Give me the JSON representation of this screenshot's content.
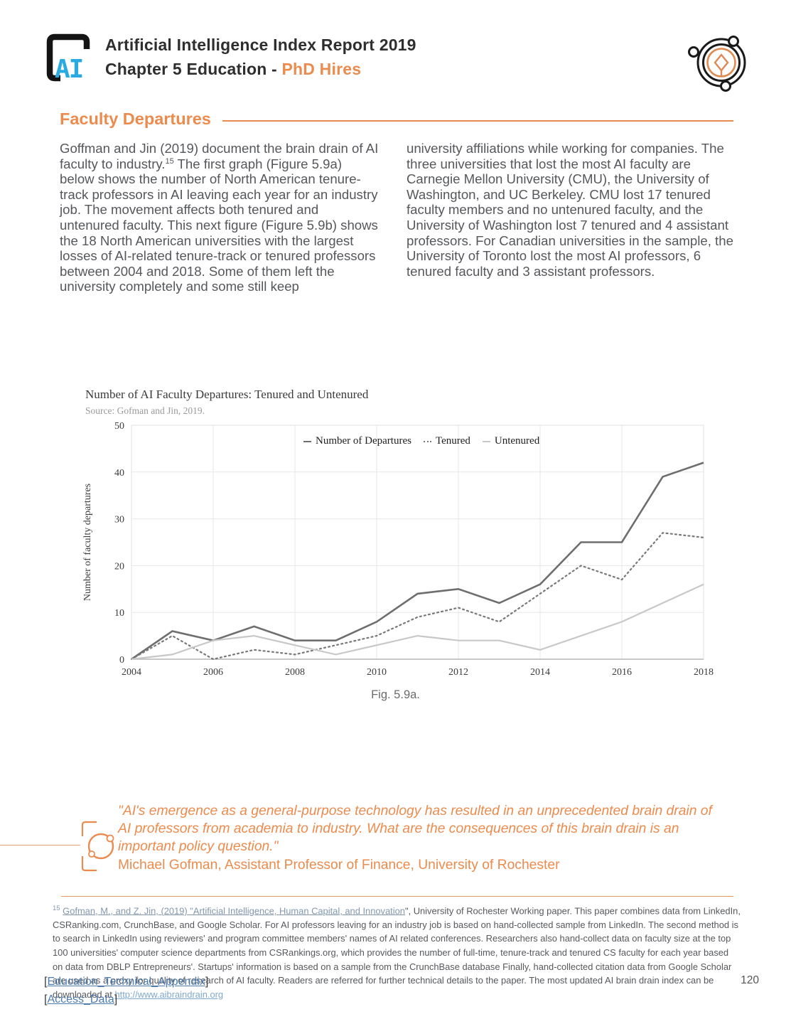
{
  "header": {
    "logo_text": "AI",
    "title": "Artificial Intelligence Index Report 2019",
    "chapter_prefix": "Chapter 5 Education - ",
    "chapter_accent": "PhD Hires"
  },
  "section": {
    "heading": "Faculty Departures"
  },
  "columns": {
    "left": {
      "p1": "Goffman and Jin (2019) document the brain drain of AI faculty to industry.",
      "sup": "15",
      "p2": " The first graph (Figure 5.9a) below shows the number of North American tenure-track professors in AI leaving each year for an industry job. The movement affects both tenured and untenured faculty. This next figure (Figure 5.9b) shows the 18 North American universities with the largest losses of AI-related tenure-track or tenured professors between 2004 and 2018. Some of them left the university completely and some still keep"
    },
    "right": {
      "p1": "university affiliations while working for companies. The three universities that lost the most AI faculty are Carnegie Mellon University (CMU), the University of Washington, and UC Berkeley. CMU lost 17 tenured faculty members and no untenured faculty, and the University of Washington lost 7 tenured and 4 assistant professors. For Canadian universities in the sample, the University of Toronto lost the most AI professors, 6 tenured faculty and 3 assistant professors."
    }
  },
  "chart_data": {
    "type": "line",
    "title": "Number of AI Faculty Departures: Tenured and Untenured",
    "source": "Source: Gofman and Jin, 2019.",
    "ylabel": "Number of faculty departures",
    "xlabel": "",
    "ylim": [
      0,
      50
    ],
    "yticks": [
      0,
      10,
      20,
      30,
      40,
      50
    ],
    "x": [
      2004,
      2005,
      2006,
      2007,
      2008,
      2009,
      2010,
      2011,
      2012,
      2013,
      2014,
      2015,
      2016,
      2017,
      2018
    ],
    "xticks": [
      2004,
      2006,
      2008,
      2010,
      2012,
      2014,
      2016,
      2018
    ],
    "grid": true,
    "legend_position": "top-center",
    "series": [
      {
        "name": "Number of Departures",
        "style": "solid",
        "color": "#6E6E6E",
        "width": 2.6,
        "values": [
          0,
          6,
          4,
          7,
          4,
          4,
          8,
          14,
          15,
          12,
          16,
          25,
          25,
          39,
          42
        ]
      },
      {
        "name": "Tenured",
        "style": "dotted",
        "color": "#787878",
        "width": 2.2,
        "values": [
          0,
          5,
          0,
          2,
          1,
          3,
          5,
          9,
          11,
          8,
          14,
          20,
          17,
          27,
          26
        ]
      },
      {
        "name": "Untenured",
        "style": "solid",
        "color": "#C8C8C8",
        "width": 2.2,
        "values": [
          0,
          1,
          4,
          5,
          3,
          1,
          3,
          5,
          4,
          4,
          2,
          5,
          8,
          12,
          16
        ]
      }
    ],
    "caption": "Fig. 5.9a."
  },
  "quote": {
    "text": "\"AI's emergence as a general-purpose technology has resulted in an unprecedented brain drain of AI professors from academia to industry. What are the consequences of this brain drain is an important policy question.\"",
    "attribution": "Michael Gofman, Assistant Professor of Finance, University of Rochester"
  },
  "footnote": {
    "ref": "15",
    "link1": "Gofman, M., and Z. Jin, (2019) \"Artificial Intelligence, Human Capital, and Innovation",
    "text1": "\", University of Rochester Working paper. This paper combines data from LinkedIn, CSRanking.com, CrunchBase, and Google Scholar. For AI professors leaving for an industry job is based on hand-collected sample from LinkedIn. The second method is to search in LinkedIn using reviewers' and program committee members' names of AI related conferences. Researchers also hand-collect data on faculty size at the top 100 universities' computer science departments from CSRankings.org, which provides the number of full-time, tenure-track and tenured CS faculty for each year based on data from DBLP Entrepreneurs'. Startups' information is based on a sample from the CrunchBase database Finally, hand-collected citation data from Google Scholar are used as a proxy for quality of research of AI faculty. Readers are referred for further technical details to the paper. The most updated AI brain drain index can be downloaded at ",
    "link2": "http://www.aibraindrain.org"
  },
  "footer": {
    "bracket_open": "[",
    "bracket_close": "]",
    "links": [
      {
        "label": "Education_Technical_Appendix"
      },
      {
        "label": "Access_Data"
      }
    ],
    "page_number": "120"
  },
  "colors": {
    "accent_orange": "#EC8B4E",
    "logo_blue": "#29ABE2",
    "body_gray": "#55575B",
    "line_departures": "#6E6E6E",
    "line_tenured": "#787878",
    "line_untenured": "#C8C8C8",
    "footer_link_blue": "#4E7CAE",
    "footnote_link_blue": "#7FA8CE"
  }
}
